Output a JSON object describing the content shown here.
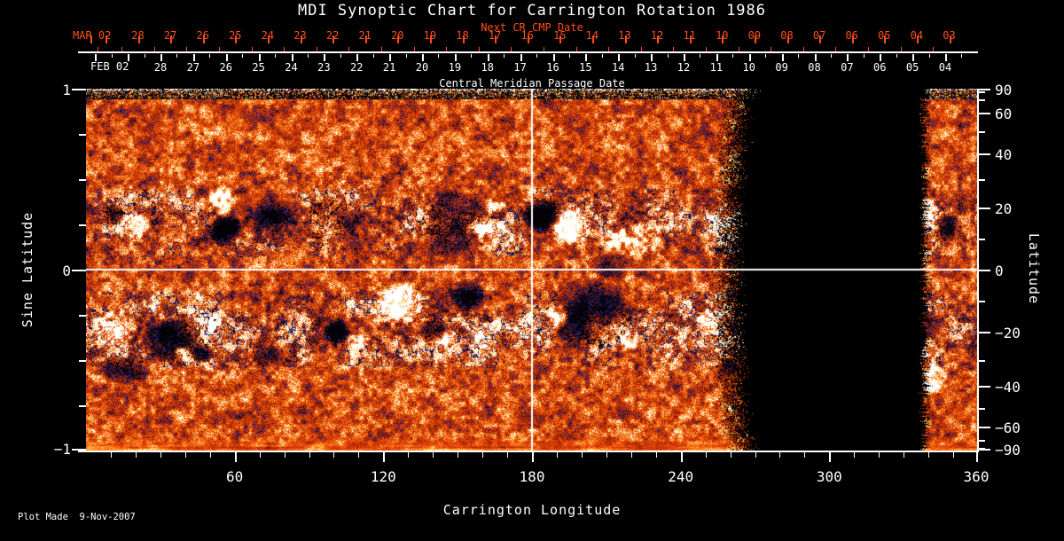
{
  "title": "MDI Synoptic Chart for Carrington Rotation 1986",
  "top_axis": {
    "label": "Next CR CMP Date",
    "month_label": "MAR 02",
    "days": [
      "28",
      "27",
      "26",
      "25",
      "24",
      "23",
      "22",
      "21",
      "20",
      "19",
      "18",
      "17",
      "16",
      "15",
      "14",
      "13",
      "12",
      "11",
      "10",
      "09",
      "08",
      "07",
      "06",
      "05",
      "04",
      "03"
    ],
    "color": "#ff4d1a"
  },
  "cmp_axis": {
    "label": "Central Meridian Passage Date",
    "month_label": "FEB 02",
    "days": [
      "28",
      "27",
      "26",
      "25",
      "24",
      "23",
      "22",
      "21",
      "20",
      "19",
      "18",
      "17",
      "16",
      "15",
      "14",
      "13",
      "12",
      "11",
      "10",
      "09",
      "08",
      "07",
      "06",
      "05",
      "04"
    ]
  },
  "x_axis": {
    "label": "Carrington Longitude",
    "ticks": [
      "60",
      "120",
      "180",
      "240",
      "300",
      "360"
    ]
  },
  "y_left": {
    "label": "Sine Latitude",
    "ticks": [
      "1",
      "0",
      "−1"
    ]
  },
  "y_right": {
    "label": "Latitude",
    "ticks": [
      "90",
      "60",
      "40",
      "20",
      "0",
      "−20",
      "−40",
      "−60",
      "−90"
    ]
  },
  "footer": "Plot Made  9-Nov-2007",
  "chart_data": {
    "type": "heatmap",
    "title": "MDI Synoptic Chart for Carrington Rotation 1986",
    "xlabel": "Carrington Longitude",
    "x_range": [
      0,
      360
    ],
    "x_major_ticks": [
      60,
      120,
      180,
      240,
      300,
      360
    ],
    "x_minor_step": 10,
    "ylabel_left": "Sine Latitude",
    "sine_lat_range": [
      -1,
      1
    ],
    "sine_lat_ticks": [
      1,
      0,
      -1
    ],
    "sine_lat_minor_step": 0.25,
    "ylabel_right": "Latitude",
    "lat_ticks": [
      90,
      60,
      40,
      20,
      0,
      -20,
      -40,
      -60,
      -90
    ],
    "lat_minor_ticks": [
      80,
      70,
      50,
      30,
      10,
      -10,
      -30,
      -50,
      -70,
      -80
    ],
    "crosshair": {
      "longitude": 180,
      "sine_latitude": 0
    },
    "data_gap_longitude": [
      268,
      337
    ],
    "right_data_strip_longitude": [
      337,
      360
    ],
    "polar_noise_bands": true,
    "palette": [
      "#000000",
      "#221c68",
      "#40288a",
      "#6e1602",
      "#982102",
      "#bc2e04",
      "#d83e08",
      "#f0540e",
      "#fc7a18",
      "#ffa232",
      "#ffd676",
      "#fff6d2",
      "#ffffff"
    ],
    "activity_belts": [
      {
        "sine_lat_center": 0.26,
        "width": 0.17
      },
      {
        "sine_lat_center": -0.33,
        "width": 0.19
      }
    ],
    "active_regions": [
      {
        "lon": 11,
        "slat": 0.3,
        "rlon": 5,
        "rslat": 0.07,
        "s": -2.3
      },
      {
        "lon": 20,
        "slat": 0.25,
        "rlon": 6,
        "rslat": 0.08,
        "s": 2.4
      },
      {
        "lon": 55,
        "slat": 0.39,
        "rlon": 6,
        "rslat": 0.09,
        "s": 2.4
      },
      {
        "lon": 56,
        "slat": 0.22,
        "rlon": 7,
        "rslat": 0.1,
        "s": -2.4
      },
      {
        "lon": 76,
        "slat": 0.31,
        "rlon": 10,
        "rslat": 0.12,
        "s": -1.1
      },
      {
        "lon": 99,
        "slat": 0.26,
        "rlon": 12,
        "rslat": 0.14,
        "s": -0.9
      },
      {
        "lon": 150,
        "slat": 0.24,
        "rlon": 16,
        "rslat": 0.22,
        "s": -1.3
      },
      {
        "lon": 160,
        "slat": 0.2,
        "rlon": 8,
        "rslat": 0.1,
        "s": 2.0
      },
      {
        "lon": 165,
        "slat": 0.35,
        "rlon": 5,
        "rslat": 0.06,
        "s": 1.6
      },
      {
        "lon": 184,
        "slat": 0.3,
        "rlon": 9,
        "rslat": 0.11,
        "s": -2.5
      },
      {
        "lon": 195,
        "slat": 0.25,
        "rlon": 9,
        "rslat": 0.12,
        "s": 2.5
      },
      {
        "lon": 221,
        "slat": 0.17,
        "rlon": 14,
        "rslat": 0.1,
        "s": 1.9
      },
      {
        "lon": 212,
        "slat": 0.02,
        "rlon": 10,
        "rslat": 0.08,
        "s": -1.2
      },
      {
        "lon": 340,
        "slat": 0.32,
        "rlon": 4,
        "rslat": 0.08,
        "s": 2.2
      },
      {
        "lon": 347,
        "slat": 0.23,
        "rlon": 5,
        "rslat": 0.09,
        "s": -2.3
      },
      {
        "lon": 35,
        "slat": -0.39,
        "rlon": 13,
        "rslat": 0.13,
        "s": -2.3
      },
      {
        "lon": 12,
        "slat": -0.32,
        "rlon": 9,
        "rslat": 0.12,
        "s": 1.8
      },
      {
        "lon": 39,
        "slat": -0.46,
        "rlon": 4,
        "rslat": 0.05,
        "s": 2.3
      },
      {
        "lon": 47,
        "slat": -0.46,
        "rlon": 5,
        "rslat": 0.06,
        "s": -2.2
      },
      {
        "lon": 15,
        "slat": -0.55,
        "rlon": 12,
        "rslat": 0.08,
        "s": -1.5
      },
      {
        "lon": 76,
        "slat": -0.48,
        "rlon": 9,
        "rslat": 0.07,
        "s": -1.2
      },
      {
        "lon": 101,
        "slat": -0.34,
        "rlon": 6,
        "rslat": 0.07,
        "s": -2.0
      },
      {
        "lon": 110,
        "slat": -0.38,
        "rlon": 5,
        "rslat": 0.06,
        "s": 2.0
      },
      {
        "lon": 126,
        "slat": -0.2,
        "rlon": 10,
        "rslat": 0.13,
        "s": 2.4
      },
      {
        "lon": 140,
        "slat": -0.34,
        "rlon": 6,
        "rslat": 0.08,
        "s": -2.0
      },
      {
        "lon": 145,
        "slat": -0.38,
        "rlon": 5,
        "rslat": 0.06,
        "s": 1.8
      },
      {
        "lon": 154,
        "slat": -0.14,
        "rlon": 8,
        "rslat": 0.1,
        "s": -1.8
      },
      {
        "lon": 203,
        "slat": -0.24,
        "rlon": 18,
        "rslat": 0.2,
        "s": -1.5
      },
      {
        "lon": 190,
        "slat": -0.26,
        "rlon": 5,
        "rslat": 0.07,
        "s": 1.9
      },
      {
        "lon": 219,
        "slat": -0.4,
        "rlon": 4,
        "rslat": 0.06,
        "s": 2.2
      },
      {
        "lon": 250,
        "slat": -0.26,
        "rlon": 4,
        "rslat": 0.05,
        "s": 1.7
      },
      {
        "lon": 259,
        "slat": -0.53,
        "rlon": 5,
        "rslat": 0.05,
        "s": -1.6
      },
      {
        "lon": 342,
        "slat": -0.6,
        "rlon": 6,
        "rslat": 0.1,
        "s": 1.7
      },
      {
        "lon": 339,
        "slat": -0.44,
        "rlon": 5,
        "rslat": 0.08,
        "s": 1.5
      }
    ]
  }
}
